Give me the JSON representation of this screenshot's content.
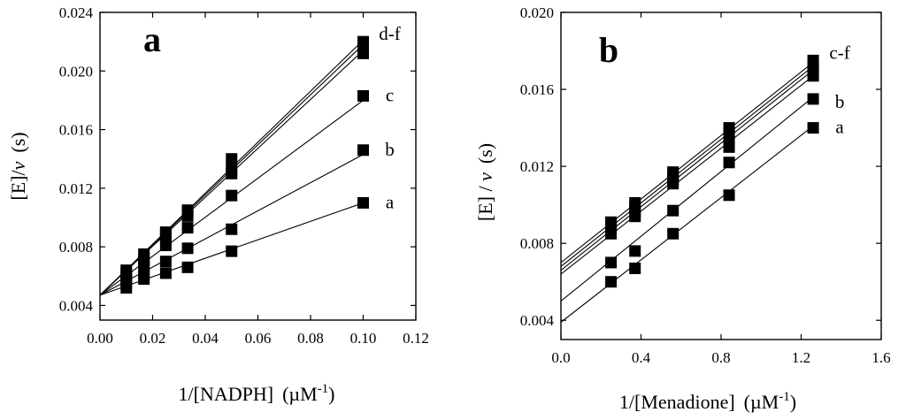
{
  "chart_data": [
    {
      "type": "scatter",
      "panel_letter": "a",
      "xlabel": "1/[NADPH]",
      "xlabel_unit": "(µM",
      "xlabel_unit_exp": "-1",
      "xlabel_unit_close": ")",
      "ylabel": "[E]/",
      "ylabel_var": "v",
      "ylabel_unit": "(s)",
      "xlim": [
        0.0,
        0.12
      ],
      "ylim": [
        0.003,
        0.024
      ],
      "xticks": [
        "0.00",
        "0.02",
        "0.04",
        "0.06",
        "0.08",
        "0.10",
        "0.12"
      ],
      "yticks": [
        "0.004",
        "0.008",
        "0.012",
        "0.016",
        "0.020",
        "0.024"
      ],
      "x": [
        0.01,
        0.0167,
        0.025,
        0.0333,
        0.05,
        0.1
      ],
      "series": [
        {
          "name": "a",
          "show_label": true,
          "values": [
            0.0052,
            0.0058,
            0.0062,
            0.0066,
            0.0077,
            0.011
          ],
          "fit": {
            "x0": 0.0,
            "y0": 0.0047,
            "x1": 0.1,
            "y1": 0.011
          }
        },
        {
          "name": "b",
          "show_label": true,
          "values": [
            0.0055,
            0.0061,
            0.007,
            0.0079,
            0.0092,
            0.0146
          ],
          "fit": {
            "x0": 0.0,
            "y0": 0.0047,
            "x1": 0.1,
            "y1": 0.0143
          }
        },
        {
          "name": "c",
          "show_label": true,
          "values": [
            0.0058,
            0.0066,
            0.0081,
            0.0093,
            0.0115,
            0.0183
          ],
          "fit": {
            "x0": 0.0,
            "y0": 0.0047,
            "x1": 0.1,
            "y1": 0.018
          }
        },
        {
          "name": "d",
          "show_label": false,
          "values": [
            0.006,
            0.0069,
            0.0086,
            0.0101,
            0.013,
            0.0212
          ],
          "fit": {
            "x0": 0.0,
            "y0": 0.0047,
            "x1": 0.1,
            "y1": 0.0214
          }
        },
        {
          "name": "e",
          "show_label": false,
          "values": [
            0.0062,
            0.0072,
            0.0089,
            0.0103,
            0.0133,
            0.0216
          ],
          "fit": {
            "x0": 0.0,
            "y0": 0.0047,
            "x1": 0.1,
            "y1": 0.0218
          }
        },
        {
          "name": "f",
          "show_label": false,
          "values": [
            0.0064,
            0.0075,
            0.009,
            0.0105,
            0.014,
            0.022
          ],
          "fit": {
            "x0": 0.0,
            "y0": 0.0047,
            "x1": 0.1,
            "y1": 0.0221
          }
        }
      ],
      "annotations": [
        {
          "text": "a",
          "anchor_series": "a"
        },
        {
          "text": "b",
          "anchor_series": "b"
        },
        {
          "text": "c",
          "anchor_series": "c"
        },
        {
          "text": "d-f",
          "anchor_series": "f"
        }
      ]
    },
    {
      "type": "scatter",
      "panel_letter": "b",
      "xlabel": "1/[Menadione]",
      "xlabel_unit": "(µM",
      "xlabel_unit_exp": "-1",
      "xlabel_unit_close": ")",
      "ylabel": "[E] / ",
      "ylabel_var": "v",
      "ylabel_unit": "(s)",
      "xlim": [
        0.0,
        1.6
      ],
      "ylim": [
        0.003,
        0.02
      ],
      "xticks": [
        "0.0",
        "0.4",
        "0.8",
        "1.2",
        "1.6"
      ],
      "yticks": [
        "0.004",
        "0.008",
        "0.012",
        "0.016",
        "0.020"
      ],
      "x": [
        0.25,
        0.37,
        0.56,
        0.84,
        1.26
      ],
      "series": [
        {
          "name": "a",
          "show_label": true,
          "values": [
            0.006,
            0.0067,
            0.0085,
            0.0105,
            0.014
          ],
          "fit": {
            "x0": 0.0,
            "y0": 0.0039,
            "x1": 1.26,
            "y1": 0.0141
          }
        },
        {
          "name": "b",
          "show_label": true,
          "values": [
            0.007,
            0.0076,
            0.0097,
            0.0122,
            0.0155
          ],
          "fit": {
            "x0": 0.0,
            "y0": 0.005,
            "x1": 1.26,
            "y1": 0.0156
          }
        },
        {
          "name": "c",
          "show_label": false,
          "values": [
            0.0085,
            0.0094,
            0.0111,
            0.013,
            0.0167
          ],
          "fit": {
            "x0": 0.0,
            "y0": 0.0064,
            "x1": 1.26,
            "y1": 0.0167
          }
        },
        {
          "name": "d",
          "show_label": false,
          "values": [
            0.0088,
            0.0096,
            0.0113,
            0.0134,
            0.0169
          ],
          "fit": {
            "x0": 0.0,
            "y0": 0.0066,
            "x1": 1.26,
            "y1": 0.017
          }
        },
        {
          "name": "e",
          "show_label": false,
          "values": [
            0.009,
            0.0099,
            0.0115,
            0.0137,
            0.0172
          ],
          "fit": {
            "x0": 0.0,
            "y0": 0.0068,
            "x1": 1.26,
            "y1": 0.0172
          }
        },
        {
          "name": "f",
          "show_label": false,
          "values": [
            0.0091,
            0.0101,
            0.0117,
            0.014,
            0.0175
          ],
          "fit": {
            "x0": 0.0,
            "y0": 0.007,
            "x1": 1.26,
            "y1": 0.0174
          }
        }
      ],
      "annotations": [
        {
          "text": "a",
          "anchor_series": "a"
        },
        {
          "text": "b",
          "anchor_series": "b"
        },
        {
          "text": "c-f",
          "anchor_series": "f"
        }
      ]
    }
  ]
}
